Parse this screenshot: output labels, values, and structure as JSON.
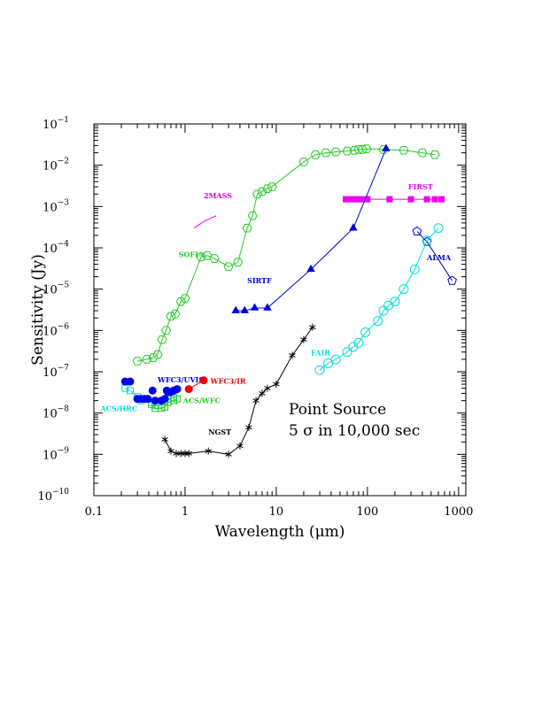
{
  "chart_data": {
    "type": "line",
    "x_scale": "log",
    "y_scale": "log",
    "xlim": [
      0.1,
      1200
    ],
    "ylim": [
      1e-10,
      0.1
    ],
    "xlabel": "Wavelength (μm)",
    "ylabel": "Sensitivity (Jy)",
    "x_ticks": [
      {
        "value": 0.1,
        "label": "0.1"
      },
      {
        "value": 1,
        "label": "1"
      },
      {
        "value": 10,
        "label": "10"
      },
      {
        "value": 100,
        "label": "100"
      },
      {
        "value": 1000,
        "label": "1000"
      }
    ],
    "y_ticks": [
      {
        "value": 1e-10,
        "base": "10",
        "exp": "−10"
      },
      {
        "value": 1e-09,
        "base": "10",
        "exp": "−9"
      },
      {
        "value": 1e-08,
        "base": "10",
        "exp": "−8"
      },
      {
        "value": 1e-07,
        "base": "10",
        "exp": "−7"
      },
      {
        "value": 1e-06,
        "base": "10",
        "exp": "−6"
      },
      {
        "value": 1e-05,
        "base": "10",
        "exp": "−5"
      },
      {
        "value": 0.0001,
        "base": "10",
        "exp": "−4"
      },
      {
        "value": 0.001,
        "base": "10",
        "exp": "−3"
      },
      {
        "value": 0.01,
        "base": "10",
        "exp": "−2"
      },
      {
        "value": 0.1,
        "base": "10",
        "exp": "−1"
      }
    ],
    "annotation": [
      "Point Source",
      "5 σ in 10,000 sec"
    ],
    "series": [
      {
        "name": "SOFIA",
        "color": "#22cc22",
        "marker": "open-hexagon",
        "connect": true,
        "label_at": [
          0.85,
          6e-05
        ],
        "x": [
          0.3,
          0.38,
          0.45,
          0.5,
          0.56,
          0.62,
          0.7,
          0.78,
          0.9,
          1.0,
          1.5,
          1.75,
          2.1,
          3.0,
          3.8,
          4.8,
          5.5,
          6.2,
          7.0,
          8.0,
          9.0,
          20,
          27,
          35,
          45,
          60,
          72,
          80,
          88,
          98,
          150,
          250,
          400,
          550
        ],
        "y": [
          1.8e-07,
          2e-07,
          2.2e-07,
          2.6e-07,
          6e-07,
          1e-06,
          2.2e-06,
          2.5e-06,
          5e-06,
          6e-06,
          6e-05,
          6.5e-05,
          5.5e-05,
          3.5e-05,
          4.5e-05,
          0.0003,
          0.0006,
          0.002,
          0.0023,
          0.0027,
          0.003,
          0.012,
          0.018,
          0.02,
          0.021,
          0.022,
          0.023,
          0.024,
          0.024,
          0.025,
          0.024,
          0.023,
          0.02,
          0.018
        ]
      },
      {
        "name": "2MASS",
        "color": "#dd00dd",
        "marker": "none",
        "connect": true,
        "label_at": [
          1.6,
          0.0016
        ],
        "x": [
          1.25,
          1.65,
          2.2
        ],
        "y": [
          0.0003,
          0.00045,
          0.0006
        ]
      },
      {
        "name": "FIRST",
        "color": "#ee00ee",
        "marker": "filled-square",
        "connect": true,
        "label_at": [
          280,
          0.0026
        ],
        "x": [
          58,
          65,
          72,
          80,
          90,
          100,
          175,
          300,
          450,
          550,
          650
        ],
        "y": [
          0.0015,
          0.0015,
          0.0015,
          0.0015,
          0.0015,
          0.0015,
          0.0015,
          0.0015,
          0.0015,
          0.0015,
          0.0015
        ]
      },
      {
        "name": "SIRTF",
        "color": "#0000dd",
        "marker": "filled-triangle",
        "connect": true,
        "label_at": [
          4.8,
          1.4e-05
        ],
        "x": [
          3.6,
          4.5,
          5.8,
          8.0,
          24,
          70,
          160
        ],
        "y": [
          3e-06,
          3e-06,
          3.5e-06,
          3.5e-06,
          3e-05,
          0.0003,
          0.025
        ]
      },
      {
        "name": "ALMA",
        "color": "#0000cc",
        "marker": "open-pentagon",
        "connect": true,
        "label_at": [
          450,
          5e-05
        ],
        "x": [
          350,
          450,
          850
        ],
        "y": [
          0.00025,
          0.00014,
          1.6e-05
        ]
      },
      {
        "name": "FAIR",
        "color": "#00dddd",
        "marker": "open-circle",
        "connect": true,
        "label_at": [
          24,
          2.5e-07
        ],
        "x": [
          30,
          37,
          45,
          60,
          70,
          80,
          95,
          130,
          150,
          170,
          200,
          250,
          330,
          450,
          600
        ],
        "y": [
          1.1e-07,
          1.6e-07,
          2e-07,
          3e-07,
          4e-07,
          5e-07,
          9e-07,
          1.7e-06,
          3e-06,
          4e-06,
          5e-06,
          1e-05,
          3e-05,
          0.00015,
          0.0003
        ]
      },
      {
        "name": "NGST",
        "color": "#000000",
        "marker": "asterisk",
        "connect": true,
        "label_at": [
          1.8,
          3e-09
        ],
        "x": [
          0.6,
          0.7,
          0.8,
          0.9,
          1.0,
          1.1,
          1.8,
          3.0,
          4.0,
          5.0,
          6.0,
          7.0,
          8.0,
          10.0,
          15.0,
          20.0,
          25.0
        ],
        "y": [
          2.3e-09,
          1.2e-09,
          1.05e-09,
          1.05e-09,
          1.05e-09,
          1.05e-09,
          1.2e-09,
          1e-09,
          1.6e-09,
          4.5e-09,
          2e-08,
          3e-08,
          4e-08,
          5e-08,
          2.5e-07,
          6e-07,
          1.2e-06
        ]
      },
      {
        "name": "ACS/HRC",
        "color": "#00dddd",
        "marker": "open-square",
        "connect": true,
        "label_at": [
          0.118,
          1.1e-08
        ],
        "x": [
          0.22,
          0.25,
          0.3,
          0.33,
          0.43,
          0.47,
          0.55,
          0.6,
          0.65,
          0.75
        ],
        "y": [
          4e-08,
          3.5e-08,
          2.5e-08,
          2e-08,
          1.8e-08,
          1.5e-08,
          1.6e-08,
          2e-08,
          2.2e-08,
          2.4e-08
        ]
      },
      {
        "name": "ACS/WFC",
        "color": "#22cc22",
        "marker": "open-square",
        "connect": true,
        "label_at": [
          0.95,
          1.75e-08
        ],
        "x": [
          0.43,
          0.47,
          0.55,
          0.6,
          0.65,
          0.75,
          0.82
        ],
        "y": [
          1.6e-08,
          1.3e-08,
          1.3e-08,
          1.4e-08,
          1.8e-08,
          2e-08,
          2.2e-08
        ]
      },
      {
        "name": "WFC3/UVIS",
        "color": "#0000ee",
        "marker": "filled-circle",
        "connect": false,
        "label_at": [
          0.5,
          5.6e-08
        ],
        "x": [
          0.22,
          0.25,
          0.3,
          0.33,
          0.36,
          0.39,
          0.44,
          0.47,
          0.55,
          0.6,
          0.63,
          0.65,
          0.7,
          0.75,
          0.82
        ],
        "y": [
          5.8e-08,
          5.8e-08,
          2.2e-08,
          2.2e-08,
          2.2e-08,
          2.2e-08,
          3.5e-08,
          2e-08,
          2e-08,
          2.2e-08,
          3.5e-08,
          3.2e-08,
          3.2e-08,
          3.5e-08,
          3.8e-08
        ]
      },
      {
        "name": "WFC3/IR",
        "color": "#ee0000",
        "marker": "filled-circle",
        "connect": true,
        "label_at": [
          1.9,
          5.2e-08
        ],
        "x": [
          1.1,
          1.6
        ],
        "y": [
          3.8e-08,
          6.2e-08
        ]
      }
    ]
  }
}
